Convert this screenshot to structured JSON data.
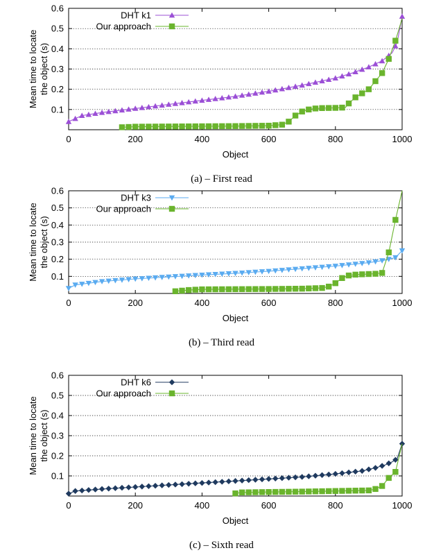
{
  "chart_data": [
    {
      "type": "line",
      "caption": "(a) – First read",
      "xlabel": "Object",
      "ylabel_lines": [
        "Mean time to locate",
        "the object (s)"
      ],
      "xlim": [
        0,
        1000
      ],
      "ylim": [
        0,
        0.6
      ],
      "xticks": [
        "0",
        "200",
        "400",
        "600",
        "800",
        "1000"
      ],
      "yticks": [
        "0.1",
        "0.2",
        "0.3",
        "0.4",
        "0.5",
        "0.6"
      ],
      "grid": "horizontal-dotted",
      "legend_position": "top-left",
      "series": [
        {
          "name": "DHT k1",
          "color": "#9b4fd6",
          "marker": "triangle-up",
          "x": [
            0,
            40,
            100,
            200,
            300,
            400,
            500,
            600,
            700,
            800,
            850,
            900,
            940,
            970,
            985,
            1000
          ],
          "y": [
            0.04,
            0.07,
            0.085,
            0.105,
            0.125,
            0.145,
            0.165,
            0.19,
            0.22,
            0.255,
            0.28,
            0.31,
            0.34,
            0.38,
            0.43,
            0.56
          ]
        },
        {
          "name": "Our approach",
          "color": "#6ab42d",
          "marker": "square",
          "x": [
            155,
            200,
            300,
            400,
            500,
            600,
            640,
            660,
            680,
            700,
            720,
            740,
            760,
            800,
            830,
            840,
            860,
            880,
            900,
            920,
            940,
            960,
            980,
            1000
          ],
          "y": [
            0.012,
            0.015,
            0.016,
            0.017,
            0.018,
            0.02,
            0.025,
            0.04,
            0.07,
            0.09,
            0.1,
            0.105,
            0.107,
            0.108,
            0.11,
            0.13,
            0.16,
            0.18,
            0.2,
            0.24,
            0.28,
            0.35,
            0.44,
            0.55
          ]
        }
      ]
    },
    {
      "type": "line",
      "caption": "(b) – Third read",
      "xlabel": "Object",
      "ylabel_lines": [
        "Mean time to locate",
        "the object (s)"
      ],
      "xlim": [
        0,
        1000
      ],
      "ylim": [
        0,
        0.6
      ],
      "xticks": [
        "0",
        "200",
        "400",
        "600",
        "800",
        "1000"
      ],
      "yticks": [
        "0.1",
        "0.2",
        "0.3",
        "0.4",
        "0.5",
        "0.6"
      ],
      "grid": "horizontal-dotted",
      "legend_position": "top-left",
      "series": [
        {
          "name": "DHT k3",
          "color": "#5aabf0",
          "marker": "triangle-down",
          "x": [
            0,
            20,
            100,
            200,
            300,
            400,
            500,
            600,
            700,
            800,
            900,
            950,
            980,
            1000
          ],
          "y": [
            0.03,
            0.05,
            0.07,
            0.085,
            0.097,
            0.108,
            0.118,
            0.13,
            0.145,
            0.16,
            0.18,
            0.195,
            0.21,
            0.25
          ]
        },
        {
          "name": "Our approach",
          "color": "#6ab42d",
          "marker": "square",
          "x": [
            315,
            360,
            400,
            500,
            600,
            700,
            760,
            780,
            800,
            820,
            840,
            860,
            880,
            920,
            940,
            960,
            980,
            1000
          ],
          "y": [
            0.012,
            0.02,
            0.024,
            0.025,
            0.026,
            0.028,
            0.032,
            0.04,
            0.06,
            0.09,
            0.105,
            0.11,
            0.112,
            0.115,
            0.12,
            0.24,
            0.43,
            0.6
          ]
        }
      ]
    },
    {
      "type": "line",
      "caption": "(c) – Sixth read",
      "xlabel": "Object",
      "ylabel_lines": [
        "Mean time to locate",
        "the object (s)"
      ],
      "xlim": [
        0,
        1000
      ],
      "ylim": [
        0,
        0.6
      ],
      "xticks": [
        "0",
        "200",
        "400",
        "600",
        "800",
        "1000"
      ],
      "yticks": [
        "0.1",
        "0.2",
        "0.3",
        "0.4",
        "0.5",
        "0.6"
      ],
      "grid": "horizontal-dotted",
      "legend_position": "top-left",
      "series": [
        {
          "name": "DHT k6",
          "color": "#1f3a5f",
          "marker": "diamond",
          "x": [
            0,
            20,
            100,
            200,
            300,
            400,
            500,
            600,
            700,
            800,
            880,
            920,
            950,
            970,
            985,
            1000
          ],
          "y": [
            0.012,
            0.025,
            0.035,
            0.045,
            0.055,
            0.065,
            0.075,
            0.085,
            0.095,
            0.11,
            0.125,
            0.14,
            0.155,
            0.17,
            0.185,
            0.26
          ]
        },
        {
          "name": "Our approach",
          "color": "#6ab42d",
          "marker": "square",
          "x": [
            495,
            520,
            600,
            700,
            800,
            900,
            920,
            940,
            960,
            980,
            1000
          ],
          "y": [
            0.012,
            0.018,
            0.02,
            0.022,
            0.025,
            0.028,
            0.035,
            0.05,
            0.09,
            0.12,
            0.26
          ]
        }
      ]
    }
  ]
}
